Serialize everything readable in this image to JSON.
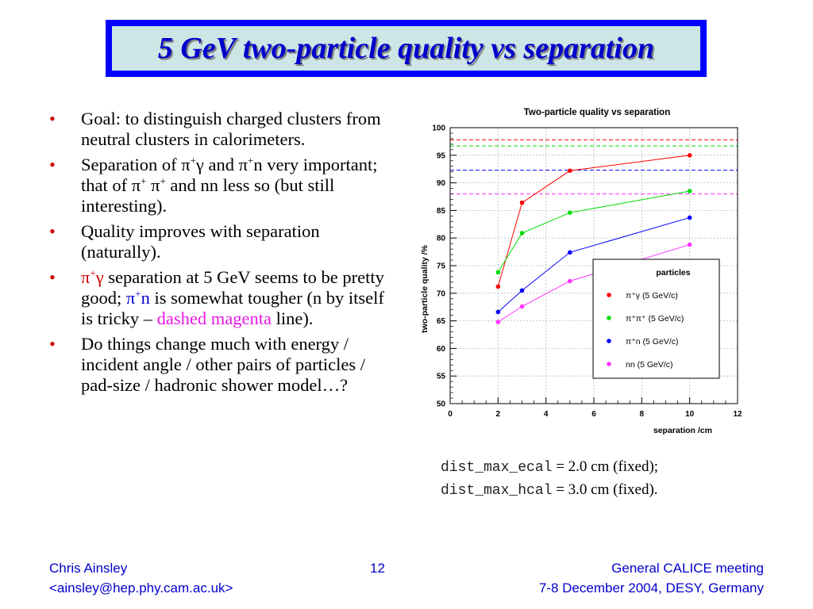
{
  "slide": {
    "title": "5 GeV two-particle quality vs separation",
    "bullets": [
      {
        "text": "Goal: to distinguish charged clusters from neutral clusters in calorimeters."
      },
      {
        "pre": "Separation of π",
        "sup1": "+",
        "mid1": "γ and π",
        "sup2": "+",
        "mid2": "n very important; that of π",
        "sup3": "+",
        "mid3": " π",
        "sup4": "+",
        "post": " and nn less so (but still interesting)."
      },
      {
        "text": "Quality improves with separation (naturally)."
      },
      {
        "red_pre": "π",
        "red_sup": "+",
        "red_post": "γ",
        "mid": " separation at 5 GeV seems to be pretty good; ",
        "blue_pre": "π",
        "blue_sup": "+",
        "blue_post": "n",
        "mid2": " is somewhat tougher (n by itself is tricky – ",
        "magenta": "dashed magenta",
        "post": " line)."
      },
      {
        "text": "Do things change much with energy / incident angle / other pairs of particles / pad-size / hadronic shower model…?"
      }
    ],
    "bullet_char": "•",
    "note": {
      "line1_code": "dist_max_ecal",
      "line1_rest": " = 2.0 cm (fixed);",
      "line2_code": "dist_max_hcal",
      "line2_rest": " = 3.0 cm (fixed)."
    },
    "footer": {
      "author": "Chris Ainsley",
      "email": "<ainsley@hep.phy.cam.ac.uk>",
      "page": "12",
      "event": "General CALICE meeting",
      "date_place": "7-8 December 2004, DESY, Germany"
    }
  },
  "chart_data": {
    "type": "line",
    "title": "Two-particle quality vs separation",
    "xlabel": "separation /cm",
    "ylabel": "two-particle quality /%",
    "xlim": [
      0,
      12
    ],
    "ylim": [
      50,
      100
    ],
    "xticks": [
      0,
      2,
      4,
      6,
      8,
      10,
      12
    ],
    "yticks": [
      50,
      55,
      60,
      65,
      70,
      75,
      80,
      85,
      90,
      95,
      100
    ],
    "grid": true,
    "legend_title": "particles",
    "legend_placement": "bottom-right",
    "series": [
      {
        "name": "π⁺γ (5 GeV/c)",
        "color": "#ff0000",
        "x": [
          2,
          3,
          5,
          10
        ],
        "y": [
          71.2,
          86.4,
          92.2,
          95.0
        ],
        "dashed_level": 97.8
      },
      {
        "name": "π⁺π⁺ (5 GeV/c)",
        "color": "#00dd00",
        "x": [
          2,
          3,
          5,
          10
        ],
        "y": [
          73.8,
          80.9,
          84.6,
          88.5
        ],
        "dashed_level": 96.7
      },
      {
        "name": "π⁺n (5 GeV/c)",
        "color": "#0000ff",
        "x": [
          2,
          3,
          5,
          10
        ],
        "y": [
          66.6,
          70.5,
          77.4,
          83.7
        ],
        "dashed_level": 92.3
      },
      {
        "name": "nn (5 GeV/c)",
        "color": "#ff33ff",
        "x": [
          2,
          3,
          5,
          10
        ],
        "y": [
          64.8,
          67.6,
          72.2,
          78.8
        ],
        "dashed_level": 88.0
      }
    ]
  }
}
